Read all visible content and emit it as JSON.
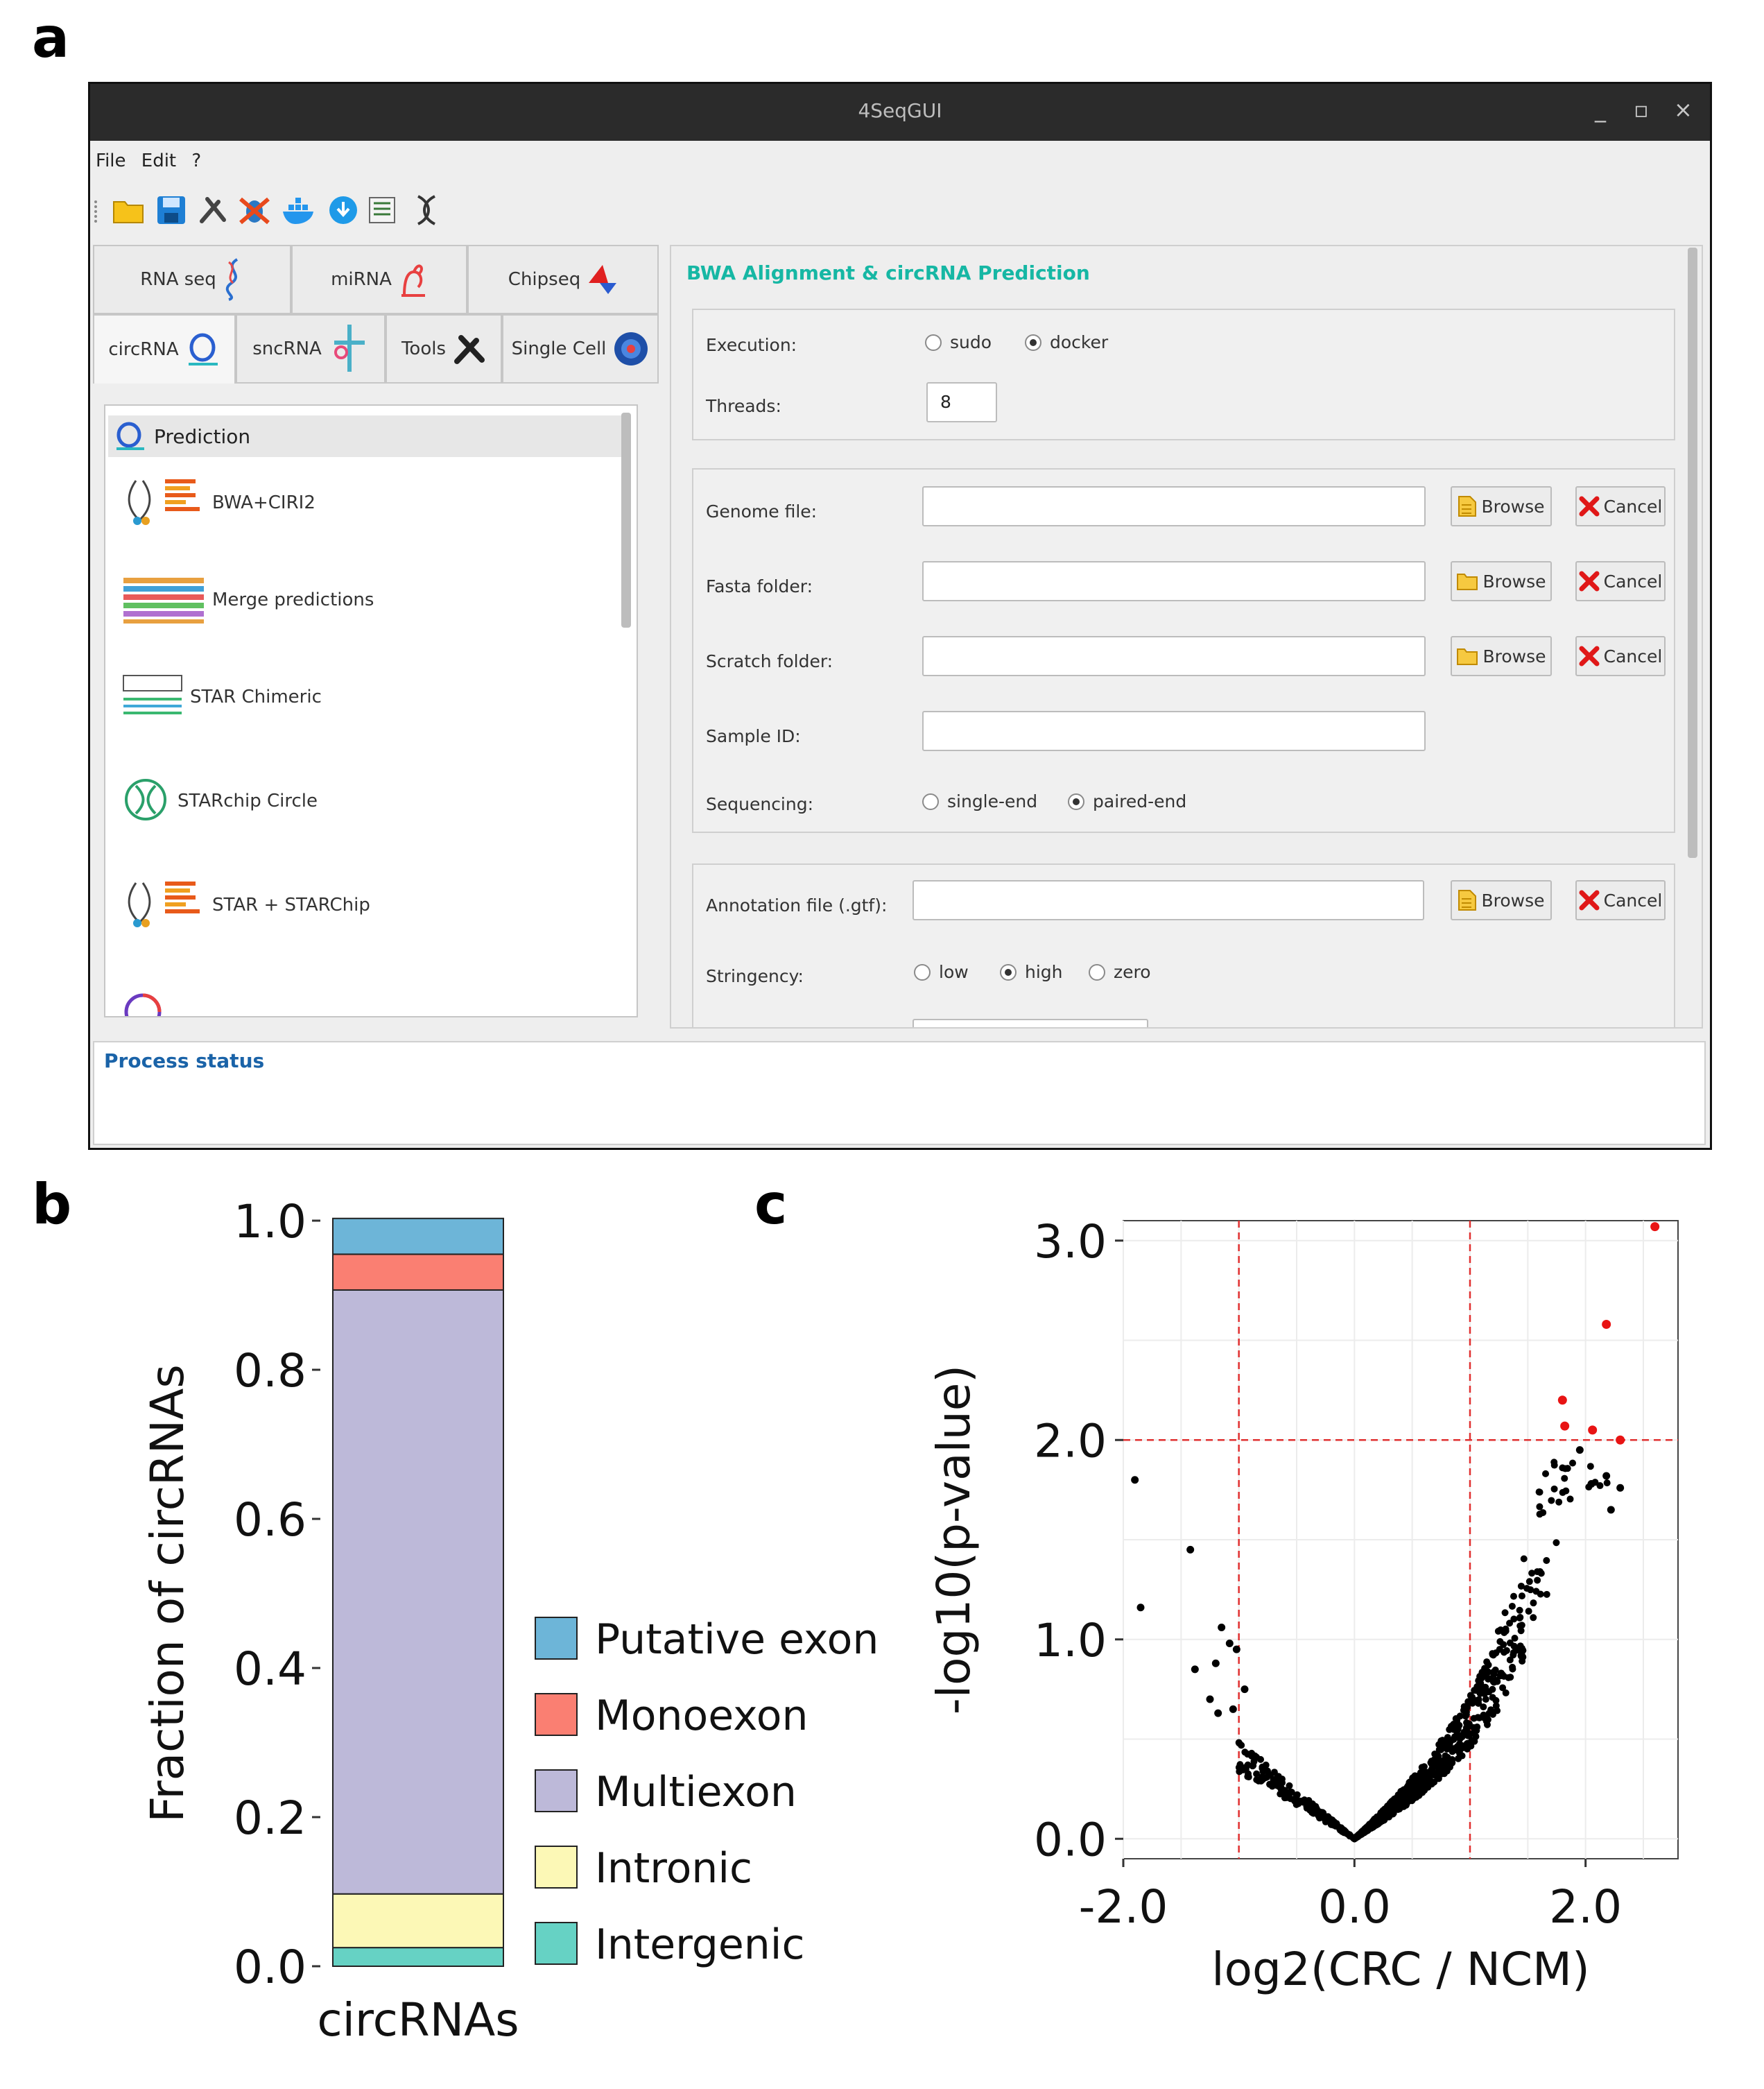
{
  "panel_labels": {
    "a": "a",
    "b": "b",
    "c": "c"
  },
  "window": {
    "title": "4SeqGUI",
    "controls": {
      "minimize": "_",
      "maximize": "▫",
      "close": "×"
    },
    "menu": [
      "File",
      "Edit",
      "?"
    ],
    "toolbar_icons": [
      "folder-open-icon",
      "save-icon",
      "tools-icon",
      "no-bug-icon",
      "docker-icon",
      "download-icon",
      "notes-icon",
      "dna-icon"
    ]
  },
  "tabs": {
    "row1": [
      {
        "label": "RNA seq"
      },
      {
        "label": "miRNA"
      },
      {
        "label": "Chipseq"
      }
    ],
    "row2": [
      {
        "label": "circRNA"
      },
      {
        "label": "sncRNA"
      },
      {
        "label": "Tools"
      },
      {
        "label": "Single Cell"
      }
    ]
  },
  "toolbox": {
    "header": "Prediction",
    "items": [
      {
        "label": "BWA+CIRI2"
      },
      {
        "label": "Merge predictions"
      },
      {
        "label": "STAR Chimeric"
      },
      {
        "label": "STARchip Circle"
      },
      {
        "label": "STAR + STARChip"
      }
    ]
  },
  "form": {
    "title": "BWA Alignment & circRNA Prediction",
    "execution": {
      "label": "Execution:",
      "options": [
        "sudo",
        "docker"
      ],
      "selected": "docker"
    },
    "threads": {
      "label": "Threads:",
      "value": "8"
    },
    "genome_file": {
      "label": "Genome file:",
      "value": ""
    },
    "fasta_folder": {
      "label": "Fasta folder:",
      "value": ""
    },
    "scratch_folder": {
      "label": "Scratch folder:",
      "value": ""
    },
    "sample_id": {
      "label": "Sample ID:",
      "value": ""
    },
    "sequencing": {
      "label": "Sequencing:",
      "options": [
        "single-end",
        "paired-end"
      ],
      "selected": "paired-end"
    },
    "annotation_file": {
      "label": "Annotation file (.gtf):",
      "value": ""
    },
    "stringency": {
      "label": "Stringency:",
      "options": [
        "low",
        "high",
        "zero"
      ],
      "selected": "high"
    },
    "browse_label": "Browse",
    "cancel_label": "Cancel"
  },
  "status": {
    "title": "Process status"
  },
  "chart_data": [
    {
      "type": "bar",
      "stacked": true,
      "categories": [
        "circRNAs"
      ],
      "series": [
        {
          "name": "Intergenic",
          "values": [
            0.025
          ],
          "color": "#66d2c4"
        },
        {
          "name": "Intronic",
          "values": [
            0.072
          ],
          "color": "#fcf8b6"
        },
        {
          "name": "Multiexon",
          "values": [
            0.81
          ],
          "color": "#bdb9d9"
        },
        {
          "name": "Monoexon",
          "values": [
            0.048
          ],
          "color": "#fa7f72"
        },
        {
          "name": "Putative exon",
          "values": [
            0.048
          ],
          "color": "#6db5d8"
        }
      ],
      "legend": [
        "Putative exon",
        "Monoexon",
        "Multiexon",
        "Intronic",
        "Intergenic"
      ],
      "ylabel": "Fraction of circRNAs",
      "xlabel": "",
      "ylim": [
        0,
        1.0
      ],
      "yticks": [
        "0.0",
        "0.2",
        "0.4",
        "0.6",
        "0.8",
        "1.0"
      ]
    },
    {
      "type": "scatter",
      "title": "",
      "xlabel": "log2(CRC / NCM)",
      "ylabel": "-log10(p-value)",
      "xlim": [
        -2.0,
        2.8
      ],
      "ylim": [
        -0.1,
        3.1
      ],
      "xticks": [
        "-2.0",
        "0.0",
        "2.0"
      ],
      "yticks": [
        "0.0",
        "1.0",
        "2.0",
        "3.0"
      ],
      "thresholds": {
        "x": [
          -1.0,
          1.0
        ],
        "y": 2.0
      },
      "significant_points": [
        [
          1.8,
          2.2
        ],
        [
          1.82,
          2.07
        ],
        [
          2.06,
          2.05
        ],
        [
          2.18,
          2.58
        ],
        [
          2.3,
          2.0
        ],
        [
          2.6,
          3.07
        ]
      ],
      "outlier_points": [
        [
          -1.9,
          1.8
        ],
        [
          -1.85,
          1.16
        ],
        [
          -1.42,
          1.45
        ],
        [
          -1.38,
          0.85
        ],
        [
          -1.2,
          0.88
        ],
        [
          -1.15,
          1.06
        ],
        [
          -1.08,
          0.98
        ],
        [
          -1.02,
          0.95
        ],
        [
          -0.95,
          0.75
        ],
        [
          -1.05,
          0.65
        ],
        [
          -1.25,
          0.7
        ],
        [
          -1.18,
          0.63
        ],
        [
          2.18,
          1.82
        ],
        [
          2.3,
          1.76
        ],
        [
          2.22,
          1.65
        ],
        [
          1.95,
          1.95
        ],
        [
          2.05,
          1.78
        ]
      ],
      "bulk_trend": {
        "x_range": [
          -1.0,
          2.2
        ],
        "approx_y_at_x": [
          [
            -1.0,
            0.45
          ],
          [
            0.0,
            0.0
          ],
          [
            1.0,
            0.5
          ],
          [
            1.5,
            1.0
          ],
          [
            2.0,
            1.6
          ]
        ]
      },
      "significant_color": "#e81414",
      "point_color": "#000000"
    }
  ]
}
